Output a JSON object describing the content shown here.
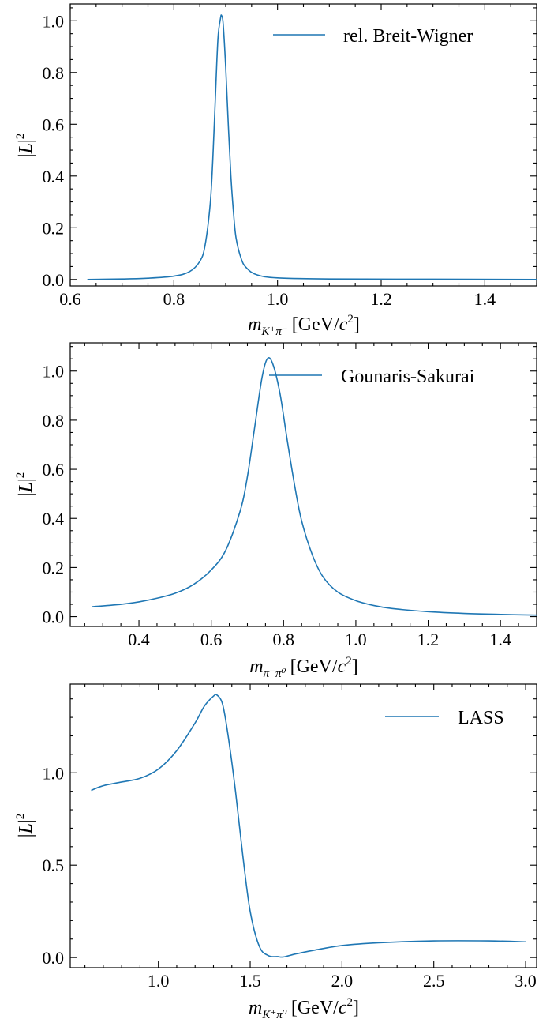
{
  "chart_data": [
    {
      "type": "line",
      "title": "",
      "xlabel_var": "m",
      "xlabel_sub": "K⁺π⁻",
      "xlabel_unit_pre": "[GeV/",
      "xlabel_unit_c": "c",
      "xlabel_unit_exp": "2",
      "xlabel_unit_post": "]",
      "ylabel_pre": "|",
      "ylabel_var": "L",
      "ylabel_post": "|",
      "ylabel_exp": "2",
      "xlim": [
        0.6,
        1.5
      ],
      "ylim": [
        -0.025,
        1.065
      ],
      "xticks": [
        0.6,
        0.8,
        1.0,
        1.2,
        1.4
      ],
      "xtick_labels": [
        "0.6",
        "0.8",
        "1.0",
        "1.2",
        "1.4"
      ],
      "xminor_step": 0.05,
      "yticks": [
        0.0,
        0.2,
        0.4,
        0.6,
        0.8,
        1.0
      ],
      "ytick_labels": [
        "0.0",
        "0.2",
        "0.4",
        "0.6",
        "0.8",
        "1.0"
      ],
      "yminor_step": 0.05,
      "legend_loc": "upper right",
      "series": [
        {
          "name": "rel. Breit-Wigner",
          "color": "#1f77b4",
          "x": [
            0.633,
            0.7,
            0.75,
            0.8,
            0.83,
            0.85,
            0.86,
            0.87,
            0.875,
            0.88,
            0.885,
            0.89,
            0.892,
            0.895,
            0.9,
            0.905,
            0.91,
            0.915,
            0.92,
            0.93,
            0.94,
            0.96,
            1.0,
            1.1,
            1.3,
            1.5
          ],
          "y": [
            0.0,
            0.002,
            0.005,
            0.013,
            0.03,
            0.07,
            0.13,
            0.29,
            0.46,
            0.7,
            0.93,
            1.01,
            1.02,
            0.99,
            0.82,
            0.6,
            0.4,
            0.26,
            0.16,
            0.08,
            0.045,
            0.018,
            0.006,
            0.002,
            0.001,
            0.0
          ]
        }
      ]
    },
    {
      "type": "line",
      "title": "",
      "xlabel_var": "m",
      "xlabel_sub": "π⁻π⁰",
      "xlabel_unit_pre": "[GeV/",
      "xlabel_unit_c": "c",
      "xlabel_unit_exp": "2",
      "xlabel_unit_post": "]",
      "ylabel_pre": "|",
      "ylabel_var": "L",
      "ylabel_post": "|",
      "ylabel_exp": "2",
      "xlim": [
        0.21,
        1.5
      ],
      "ylim": [
        -0.04,
        1.115
      ],
      "xticks": [
        0.4,
        0.6,
        0.8,
        1.0,
        1.2,
        1.4
      ],
      "xtick_labels": [
        "0.4",
        "0.6",
        "0.8",
        "1.0",
        "1.2",
        "1.4"
      ],
      "xminor_step": 0.05,
      "yticks": [
        0.0,
        0.2,
        0.4,
        0.6,
        0.8,
        1.0
      ],
      "ytick_labels": [
        "0.0",
        "0.2",
        "0.4",
        "0.6",
        "0.8",
        "1.0"
      ],
      "yminor_step": 0.05,
      "legend_loc": "upper right",
      "series": [
        {
          "name": "Gounaris-Sakurai",
          "color": "#1f77b4",
          "x": [
            0.27,
            0.35,
            0.4,
            0.45,
            0.5,
            0.55,
            0.6,
            0.64,
            0.68,
            0.7,
            0.72,
            0.74,
            0.755,
            0.77,
            0.79,
            0.81,
            0.83,
            0.85,
            0.88,
            0.91,
            0.95,
            1.0,
            1.05,
            1.1,
            1.2,
            1.3,
            1.4,
            1.5
          ],
          "y": [
            0.04,
            0.05,
            0.06,
            0.075,
            0.095,
            0.13,
            0.19,
            0.27,
            0.43,
            0.57,
            0.77,
            0.97,
            1.05,
            1.03,
            0.91,
            0.72,
            0.54,
            0.39,
            0.25,
            0.16,
            0.1,
            0.065,
            0.045,
            0.033,
            0.02,
            0.013,
            0.009,
            0.006
          ]
        }
      ]
    },
    {
      "type": "line",
      "title": "",
      "xlabel_var": "m",
      "xlabel_sub": "K⁺π⁰",
      "xlabel_unit_pre": "[GeV/",
      "xlabel_unit_c": "c",
      "xlabel_unit_exp": "2",
      "xlabel_unit_post": "]",
      "ylabel_pre": "|",
      "ylabel_var": "L",
      "ylabel_post": "|",
      "ylabel_exp": "2",
      "xlim": [
        0.52,
        3.06
      ],
      "ylim": [
        -0.055,
        1.48
      ],
      "xticks": [
        1.0,
        1.5,
        2.0,
        2.5,
        3.0
      ],
      "xtick_labels": [
        "1.0",
        "1.5",
        "2.0",
        "2.5",
        "3.0"
      ],
      "xminor_step": 0.1,
      "yticks": [
        0.0,
        0.5,
        1.0
      ],
      "ytick_labels": [
        "0.0",
        "0.5",
        "1.0"
      ],
      "yminor_step": 0.1,
      "legend_loc": "upper right",
      "series": [
        {
          "name": "LASS",
          "color": "#1f77b4",
          "x": [
            0.634,
            0.7,
            0.8,
            0.9,
            1.0,
            1.1,
            1.2,
            1.25,
            1.3,
            1.32,
            1.35,
            1.38,
            1.42,
            1.46,
            1.5,
            1.55,
            1.6,
            1.65,
            1.68,
            1.75,
            1.85,
            2.0,
            2.2,
            2.5,
            2.8,
            3.0
          ],
          "y": [
            0.905,
            0.93,
            0.95,
            0.97,
            1.02,
            1.12,
            1.27,
            1.36,
            1.415,
            1.42,
            1.37,
            1.2,
            0.9,
            0.55,
            0.25,
            0.06,
            0.01,
            0.005,
            0.003,
            0.02,
            0.04,
            0.065,
            0.08,
            0.09,
            0.09,
            0.085
          ]
        }
      ]
    }
  ]
}
